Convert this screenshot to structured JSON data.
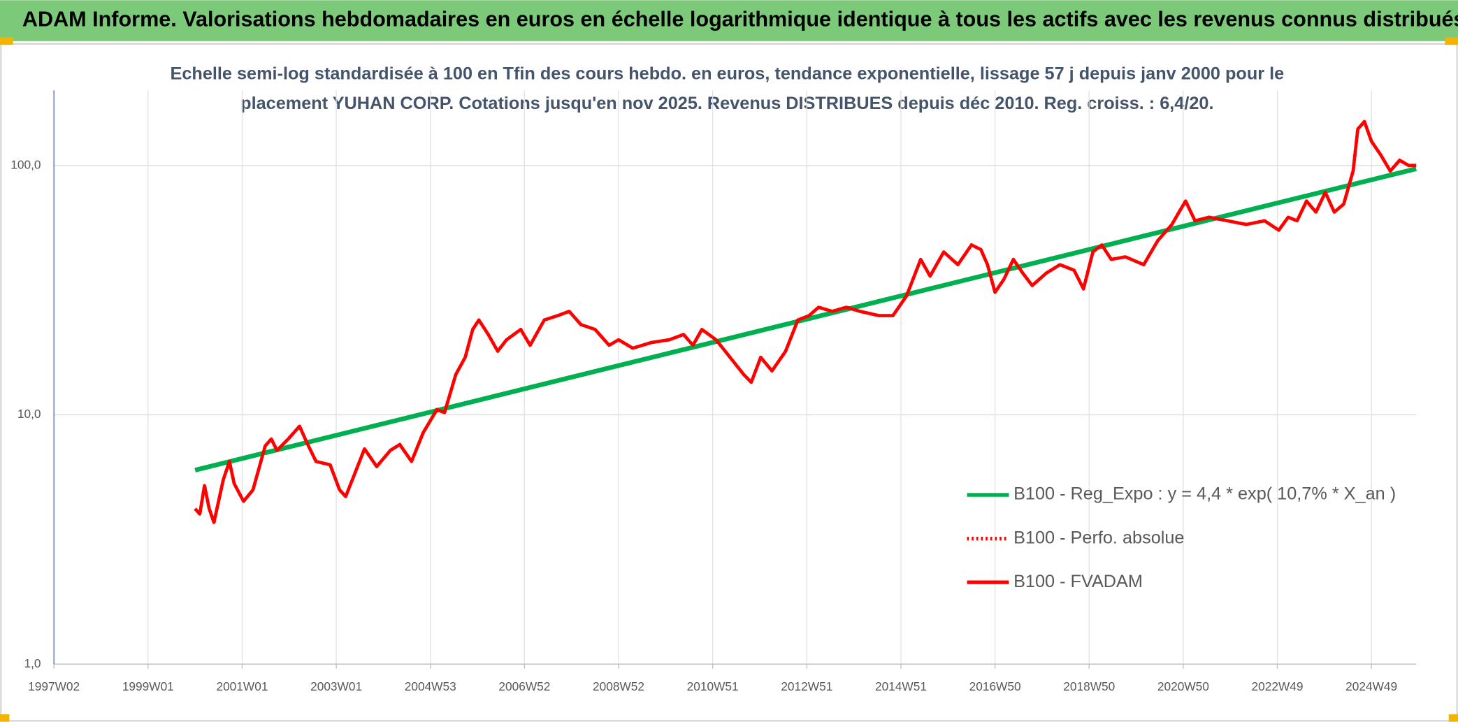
{
  "chart_data": {
    "type": "line",
    "title": "ADAM Informe. Valorisations hebdomadaires en euros en échelle logarithmique identique à tous les actifs avec les revenus connus distribués",
    "subtitle": [
      "Echelle semi-log standardisée à 100 en Tfin des cours hebdo. en euros, tendance exponentielle, lissage 57 j depuis janv 2000 pour le",
      "placement YUHAN CORP. Cotations jusqu'en nov 2025. Revenus DISTRIBUES depuis déc 2010. Reg. croiss. : 6,4/20."
    ],
    "log_scale": true,
    "grid": true,
    "legend": "right",
    "xlim": [
      1997.0,
      2025.95
    ],
    "xticks": [
      {
        "value": 1997,
        "label": "1997W02"
      },
      {
        "value": 1999,
        "label": "1999W01"
      },
      {
        "value": 2001,
        "label": "2001W01"
      },
      {
        "value": 2003,
        "label": "2003W01"
      },
      {
        "value": 2005,
        "label": "2004W53"
      },
      {
        "value": 2007,
        "label": "2006W52"
      },
      {
        "value": 2009,
        "label": "2008W52"
      },
      {
        "value": 2011,
        "label": "2010W51"
      },
      {
        "value": 2013,
        "label": "2012W51"
      },
      {
        "value": 2015,
        "label": "2014W51"
      },
      {
        "value": 2017,
        "label": "2016W50"
      },
      {
        "value": 2019,
        "label": "2018W50"
      },
      {
        "value": 2021,
        "label": "2020W50"
      },
      {
        "value": 2023,
        "label": "2022W49"
      },
      {
        "value": 2025,
        "label": "2024W49"
      }
    ],
    "ylim": [
      1,
      200
    ],
    "yticks": [
      {
        "value": 1,
        "label": "1,0"
      },
      {
        "value": 10,
        "label": "10,0"
      },
      {
        "value": 100,
        "label": "100,0"
      }
    ],
    "series": [
      {
        "name": "B100 - Reg_Expo : y = 4,4 * exp( 10,7% *  X_an )",
        "color": "#00b050",
        "style": "solid",
        "x": [
          2000.0,
          2025.95
        ],
        "values": [
          6.0,
          97
        ]
      },
      {
        "name": "B100 - Perfo. absolue",
        "color": "#ff0000",
        "style": "dotted",
        "x": [
          2000.0,
          2000.1,
          2000.2,
          2000.3,
          2000.4,
          2000.6,
          2000.73,
          2000.83,
          2001.03,
          2001.23,
          2001.49,
          2001.62,
          2001.74,
          2001.98,
          2002.22,
          2002.38,
          2002.57,
          2002.87,
          2003.07,
          2003.2,
          2003.36,
          2003.6,
          2003.86,
          2004.15,
          2004.35,
          2004.6,
          2004.85,
          2005.14,
          2005.3,
          2005.54,
          2005.74,
          2005.9,
          2006.03,
          2006.23,
          2006.43,
          2006.62,
          2006.92,
          2007.12,
          2007.42,
          2007.71,
          2007.95,
          2008.2,
          2008.5,
          2008.8,
          2009.0,
          2009.3,
          2009.7,
          2010.08,
          2010.38,
          2010.58,
          2010.77,
          2011.07,
          2011.37,
          2011.66,
          2011.82,
          2012.02,
          2012.26,
          2012.55,
          2012.81,
          2013.05,
          2013.25,
          2013.54,
          2013.84,
          2014.13,
          2014.53,
          2014.83,
          2015.12,
          2015.42,
          2015.62,
          2015.91,
          2016.21,
          2016.5,
          2016.7,
          2016.84,
          2017.0,
          2017.19,
          2017.39,
          2017.59,
          2017.79,
          2018.09,
          2018.38,
          2018.68,
          2018.88,
          2019.08,
          2019.27,
          2019.47,
          2019.77,
          2020.16,
          2020.46,
          2020.76,
          2020.91,
          2021.05,
          2021.25,
          2021.55,
          2021.94,
          2022.34,
          2022.73,
          2023.03,
          2023.23,
          2023.42,
          2023.62,
          2023.82,
          2024.02,
          2024.21,
          2024.41,
          2024.61,
          2024.71,
          2024.85,
          2025.0,
          2025.2,
          2025.4,
          2025.6,
          2025.79,
          2025.95
        ],
        "values": [
          4.2,
          4.0,
          5.2,
          4.2,
          3.7,
          5.5,
          6.5,
          5.3,
          4.5,
          5.0,
          7.5,
          8.0,
          7.2,
          8.0,
          9.0,
          7.7,
          6.5,
          6.3,
          5.0,
          4.7,
          5.6,
          7.3,
          6.2,
          7.2,
          7.6,
          6.5,
          8.5,
          10.5,
          10.2,
          14.5,
          17,
          22,
          24,
          21,
          18,
          20,
          22,
          19,
          24,
          25,
          26,
          23,
          22,
          19,
          20,
          18.5,
          19.5,
          20,
          21,
          19,
          22,
          20,
          17,
          14.5,
          13.5,
          17,
          15,
          18,
          24,
          25,
          27,
          26,
          27,
          26,
          25,
          25,
          30,
          42,
          36,
          45,
          40,
          48,
          46,
          40,
          31,
          35,
          42,
          37,
          33,
          37,
          40,
          38,
          32,
          45,
          48,
          42,
          43,
          40,
          50,
          58,
          65,
          72,
          60,
          62,
          60,
          58,
          60,
          55,
          62,
          60,
          72,
          65,
          78,
          65,
          70,
          95,
          140,
          150,
          125,
          110,
          95,
          105,
          100,
          100
        ]
      },
      {
        "name": "B100 - FVADAM",
        "color": "#ff0000",
        "style": "solid",
        "x": [
          2000.0,
          2000.1,
          2000.2,
          2000.3,
          2000.4,
          2000.6,
          2000.73,
          2000.83,
          2001.03,
          2001.23,
          2001.49,
          2001.62,
          2001.74,
          2001.98,
          2002.22,
          2002.38,
          2002.57,
          2002.87,
          2003.07,
          2003.2,
          2003.36,
          2003.6,
          2003.86,
          2004.15,
          2004.35,
          2004.6,
          2004.85,
          2005.14,
          2005.3,
          2005.54,
          2005.74,
          2005.9,
          2006.03,
          2006.23,
          2006.43,
          2006.62,
          2006.92,
          2007.12,
          2007.42,
          2007.71,
          2007.95,
          2008.2,
          2008.5,
          2008.8,
          2009.0,
          2009.3,
          2009.7,
          2010.08,
          2010.38,
          2010.58,
          2010.77,
          2011.07,
          2011.37,
          2011.66,
          2011.82,
          2012.02,
          2012.26,
          2012.55,
          2012.81,
          2013.05,
          2013.25,
          2013.54,
          2013.84,
          2014.13,
          2014.53,
          2014.83,
          2015.12,
          2015.42,
          2015.62,
          2015.91,
          2016.21,
          2016.5,
          2016.7,
          2016.84,
          2017.0,
          2017.19,
          2017.39,
          2017.59,
          2017.79,
          2018.09,
          2018.38,
          2018.68,
          2018.88,
          2019.08,
          2019.27,
          2019.47,
          2019.77,
          2020.16,
          2020.46,
          2020.76,
          2020.91,
          2021.05,
          2021.25,
          2021.55,
          2021.94,
          2022.34,
          2022.73,
          2023.03,
          2023.23,
          2023.42,
          2023.62,
          2023.82,
          2024.02,
          2024.21,
          2024.41,
          2024.61,
          2024.71,
          2024.85,
          2025.0,
          2025.2,
          2025.4,
          2025.6,
          2025.79,
          2025.95
        ],
        "values": [
          4.2,
          4.0,
          5.2,
          4.2,
          3.7,
          5.5,
          6.5,
          5.3,
          4.5,
          5.0,
          7.5,
          8.0,
          7.2,
          8.0,
          9.0,
          7.7,
          6.5,
          6.3,
          5.0,
          4.7,
          5.6,
          7.3,
          6.2,
          7.2,
          7.6,
          6.5,
          8.5,
          10.5,
          10.2,
          14.5,
          17,
          22,
          24,
          21,
          18,
          20,
          22,
          19,
          24,
          25,
          26,
          23,
          22,
          19,
          20,
          18.5,
          19.5,
          20,
          21,
          19,
          22,
          20,
          17,
          14.5,
          13.5,
          17,
          15,
          18,
          24,
          25,
          27,
          26,
          27,
          26,
          25,
          25,
          30,
          42,
          36,
          45,
          40,
          48,
          46,
          40,
          31,
          35,
          42,
          37,
          33,
          37,
          40,
          38,
          32,
          45,
          48,
          42,
          43,
          40,
          50,
          58,
          65,
          72,
          60,
          62,
          60,
          58,
          60,
          55,
          62,
          60,
          72,
          65,
          78,
          65,
          70,
          95,
          140,
          150,
          125,
          110,
          95,
          105,
          100,
          100
        ]
      }
    ]
  }
}
